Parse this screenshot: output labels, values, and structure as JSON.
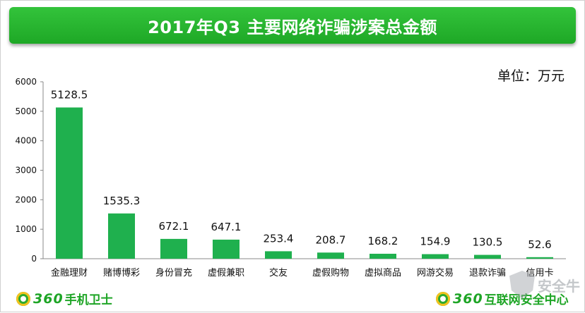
{
  "title": "2017年Q3 主要网络诈骗涉案总金额",
  "unit_label": "单位：万元",
  "brand_left": {
    "num": "360",
    "text": "手机卫士"
  },
  "brand_right": {
    "num": "360",
    "text": "互联网安全中心"
  },
  "watermark": "安全牛",
  "colors": {
    "bar": "#1fb04e",
    "title_bg": "#24b22c",
    "brand": "#1ea526"
  },
  "chart_data": {
    "type": "bar",
    "categories": [
      "金融理财",
      "赌博博彩",
      "身份冒充",
      "虚假兼职",
      "交友",
      "虚假购物",
      "虚拟商品",
      "网游交易",
      "退款诈骗",
      "信用卡"
    ],
    "values": [
      5128.5,
      1535.3,
      672.1,
      647.1,
      253.4,
      208.7,
      168.2,
      154.9,
      130.5,
      52.6
    ],
    "value_labels": [
      "5128.5",
      "1535.3",
      "672.1",
      "647.1",
      "253.4",
      "208.7",
      "168.2",
      "154.9",
      "130.5",
      "52.6"
    ],
    "title": "2017年Q3 主要网络诈骗涉案总金额",
    "xlabel": "",
    "ylabel": "",
    "ylim": [
      0,
      6000
    ],
    "yticks": [
      0,
      1000,
      2000,
      3000,
      4000,
      5000,
      6000
    ],
    "grid": false
  }
}
